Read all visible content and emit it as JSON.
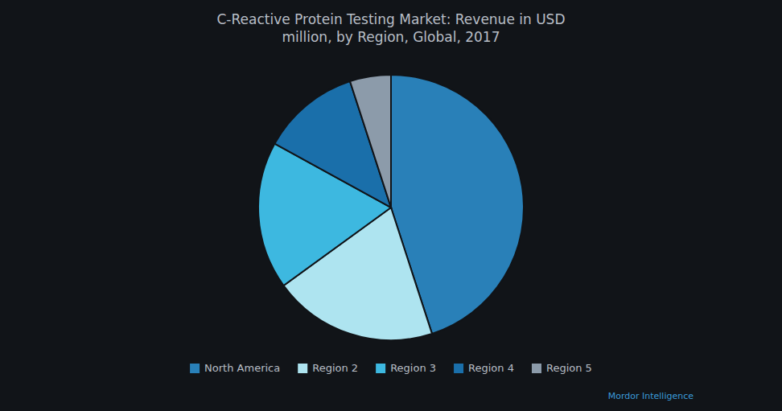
{
  "chart_data": {
    "type": "pie",
    "title": "C-Reactive Protein Testing Market:  Revenue  in USD\nmillion, by Region, Global, 2017",
    "categories": [
      "North America",
      "Region 2",
      "Region 3",
      "Region 4",
      "Region 5"
    ],
    "values": [
      45,
      20,
      18,
      12,
      5
    ],
    "colors": [
      "#2980b8",
      "#aee4f0",
      "#3db8e0",
      "#1a6faa",
      "#8c9baa"
    ],
    "legend": "bottom",
    "annotations": [
      "Mordor Intelligence"
    ]
  }
}
